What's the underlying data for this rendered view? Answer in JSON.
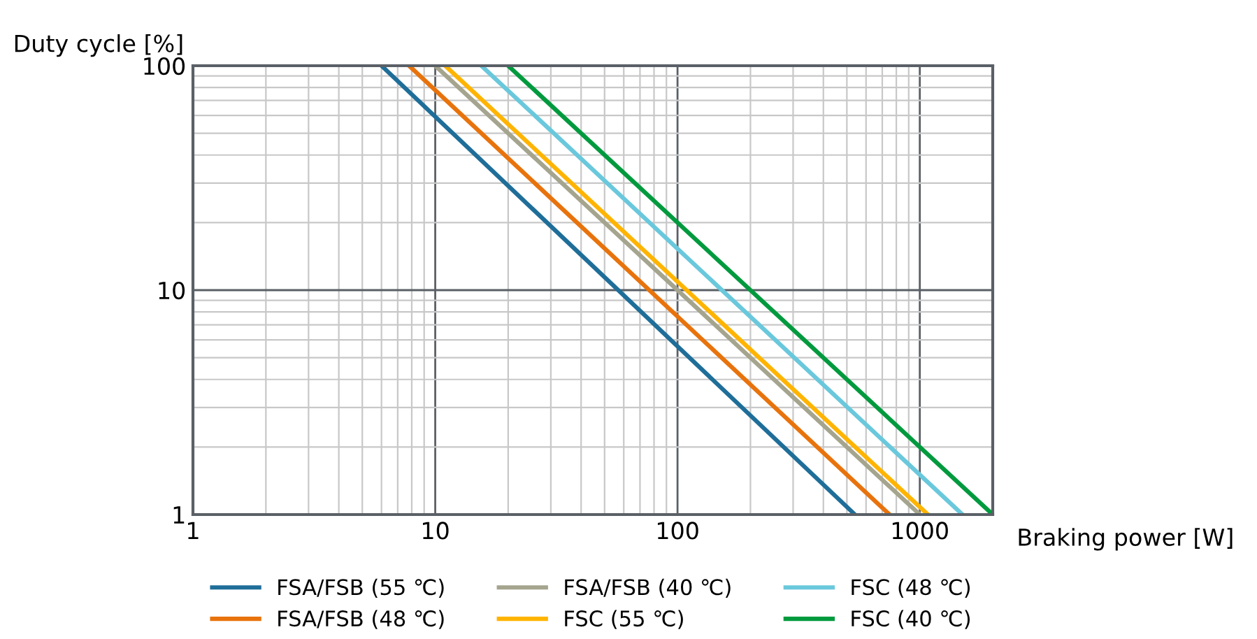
{
  "chart_data": {
    "type": "line",
    "xlabel": "Braking power [W]",
    "ylabel": "Duty cycle [%]",
    "log": "xy",
    "xlim": [
      1,
      2000
    ],
    "ylim": [
      1,
      100
    ],
    "xticks": [
      1,
      10,
      100,
      1000
    ],
    "yticks": [
      1,
      10,
      100
    ],
    "grid": true,
    "legend": "bottom",
    "marker": "none",
    "line_style": "solid",
    "series": [
      {
        "name": "FSA/FSB (55 ℃)",
        "color": "#1f6e99",
        "x": [
          6,
          540
        ],
        "values": [
          100,
          1
        ]
      },
      {
        "name": "FSA/FSB (48 ℃)",
        "color": "#e8730c",
        "x": [
          7.8,
          750
        ],
        "values": [
          100,
          1
        ]
      },
      {
        "name": "FSA/FSB (40 ℃)",
        "color": "#a5a48e",
        "x": [
          10,
          1000
        ],
        "values": [
          100,
          1
        ]
      },
      {
        "name": "FSC (55 ℃)",
        "color": "#ffb400",
        "x": [
          11,
          1080
        ],
        "values": [
          100,
          1
        ]
      },
      {
        "name": "FSC (48 ℃)",
        "color": "#6ac8dc",
        "x": [
          15.5,
          1500
        ],
        "values": [
          100,
          1
        ]
      },
      {
        "name": "FSC (40 ℃)",
        "color": "#009a3e",
        "x": [
          20,
          2000
        ],
        "values": [
          100,
          1
        ]
      }
    ]
  }
}
